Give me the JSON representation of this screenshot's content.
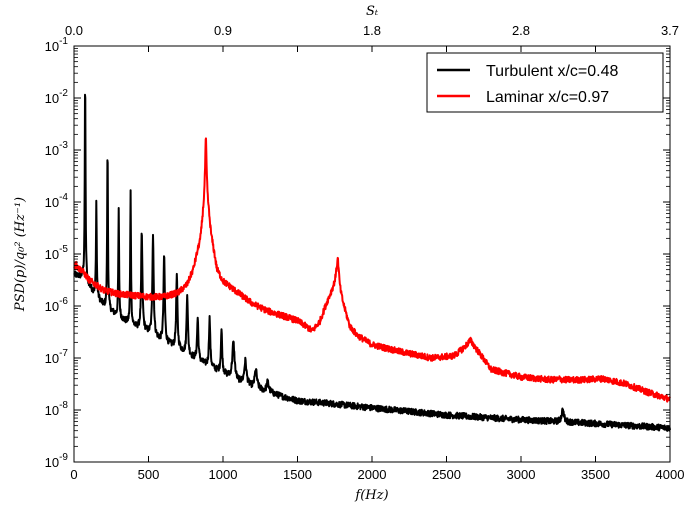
{
  "chart_data": {
    "type": "line",
    "xlabel": "f(Hz)",
    "ylabel": "PSD(p)/q₀² (Hz⁻¹)",
    "top_xlabel": "Sₜ",
    "xlim": [
      0,
      4000
    ],
    "ylim_log10": [
      -9,
      -1
    ],
    "yscale": "log",
    "x_ticks": [
      "0",
      "500",
      "1000",
      "1500",
      "2000",
      "2500",
      "3000",
      "3500",
      "4000"
    ],
    "x_tick_values": [
      0,
      500,
      1000,
      1500,
      2000,
      2500,
      3000,
      3500,
      4000
    ],
    "top_ticks": [
      "0.0",
      "0.9",
      "1.8",
      "2.8",
      "3.7"
    ],
    "top_tick_positions_hz": [
      0,
      1000,
      2000,
      3000,
      4000
    ],
    "y_ticks": [
      {
        "base": "10",
        "exp": "-9"
      },
      {
        "base": "10",
        "exp": "-8"
      },
      {
        "base": "10",
        "exp": "-7"
      },
      {
        "base": "10",
        "exp": "-6"
      },
      {
        "base": "10",
        "exp": "-5"
      },
      {
        "base": "10",
        "exp": "-4"
      },
      {
        "base": "10",
        "exp": "-3"
      },
      {
        "base": "10",
        "exp": "-2"
      },
      {
        "base": "10",
        "exp": "-1"
      }
    ],
    "legend_position": "top-right",
    "series": [
      {
        "name": "Turbulent x/c=0.48",
        "color": "#000000",
        "baseline": [
          [
            0,
            4e-06
          ],
          [
            60,
            3.5e-06
          ],
          [
            120,
            2e-06
          ],
          [
            200,
            1e-06
          ],
          [
            300,
            6e-07
          ],
          [
            400,
            4e-07
          ],
          [
            500,
            3e-07
          ],
          [
            600,
            2e-07
          ],
          [
            700,
            1.5e-07
          ],
          [
            800,
            1e-07
          ],
          [
            900,
            7e-08
          ],
          [
            1000,
            5e-08
          ],
          [
            1100,
            3.5e-08
          ],
          [
            1200,
            2.7e-08
          ],
          [
            1300,
            2.2e-08
          ],
          [
            1400,
            1.8e-08
          ],
          [
            1500,
            1.5e-08
          ],
          [
            1700,
            1.35e-08
          ],
          [
            2000,
            1.1e-08
          ],
          [
            2500,
            8e-09
          ],
          [
            3000,
            6.5e-09
          ],
          [
            3500,
            5.5e-09
          ],
          [
            4000,
            4.5e-09
          ]
        ],
        "peaks": [
          [
            75,
            0.025
          ],
          [
            150,
            0.00012
          ],
          [
            225,
            0.0012
          ],
          [
            300,
            7e-05
          ],
          [
            380,
            0.00016
          ],
          [
            455,
            2.7e-05
          ],
          [
            530,
            2.5e-05
          ],
          [
            605,
            1e-05
          ],
          [
            690,
            4e-06
          ],
          [
            760,
            1.8e-06
          ],
          [
            830,
            6e-07
          ],
          [
            910,
            6e-07
          ],
          [
            990,
            3.5e-07
          ],
          [
            1070,
            2e-07
          ],
          [
            1150,
            9e-08
          ],
          [
            1220,
            6e-08
          ],
          [
            1300,
            3.5e-08
          ],
          [
            3280,
            1e-08
          ]
        ]
      },
      {
        "name": "Laminar x/c=0.97",
        "color": "#ff0000",
        "baseline": [
          [
            0,
            5.5e-06
          ],
          [
            50,
            5e-06
          ],
          [
            100,
            3.2e-06
          ],
          [
            200,
            2e-06
          ],
          [
            300,
            1.7e-06
          ],
          [
            400,
            1.6e-06
          ],
          [
            500,
            1.5e-06
          ],
          [
            600,
            1.5e-06
          ],
          [
            700,
            1.8e-06
          ],
          [
            760,
            2.6e-06
          ],
          [
            800,
            5e-06
          ],
          [
            850,
            2e-05
          ],
          [
            885,
            0.0002
          ],
          [
            920,
            2.3e-05
          ],
          [
            960,
            5e-06
          ],
          [
            1000,
            3e-06
          ],
          [
            1100,
            1.8e-06
          ],
          [
            1200,
            1.1e-06
          ],
          [
            1300,
            8e-07
          ],
          [
            1400,
            6.5e-07
          ],
          [
            1500,
            5.2e-07
          ],
          [
            1560,
            4e-07
          ],
          [
            1600,
            3.3e-07
          ],
          [
            1650,
            5e-07
          ],
          [
            1700,
            1.2e-06
          ],
          [
            1760,
            3e-06
          ],
          [
            1800,
            1.2e-06
          ],
          [
            1850,
            4e-07
          ],
          [
            1900,
            2.7e-07
          ],
          [
            2000,
            1.8e-07
          ],
          [
            2200,
            1.3e-07
          ],
          [
            2400,
            1e-07
          ],
          [
            2550,
            1.1e-07
          ],
          [
            2620,
            1.6e-07
          ],
          [
            2660,
            2.2e-07
          ],
          [
            2700,
            1.5e-07
          ],
          [
            2800,
            6e-08
          ],
          [
            3000,
            4.3e-08
          ],
          [
            3200,
            3.8e-08
          ],
          [
            3400,
            3.8e-08
          ],
          [
            3550,
            4e-08
          ],
          [
            3700,
            3.2e-08
          ],
          [
            3850,
            2.2e-08
          ],
          [
            4000,
            1.6e-08
          ]
        ],
        "peaks": [
          [
            15,
            8e-06
          ],
          [
            885,
            0.0016
          ],
          [
            1770,
            8e-06
          ],
          [
            3260,
            4e-08
          ]
        ]
      }
    ]
  }
}
